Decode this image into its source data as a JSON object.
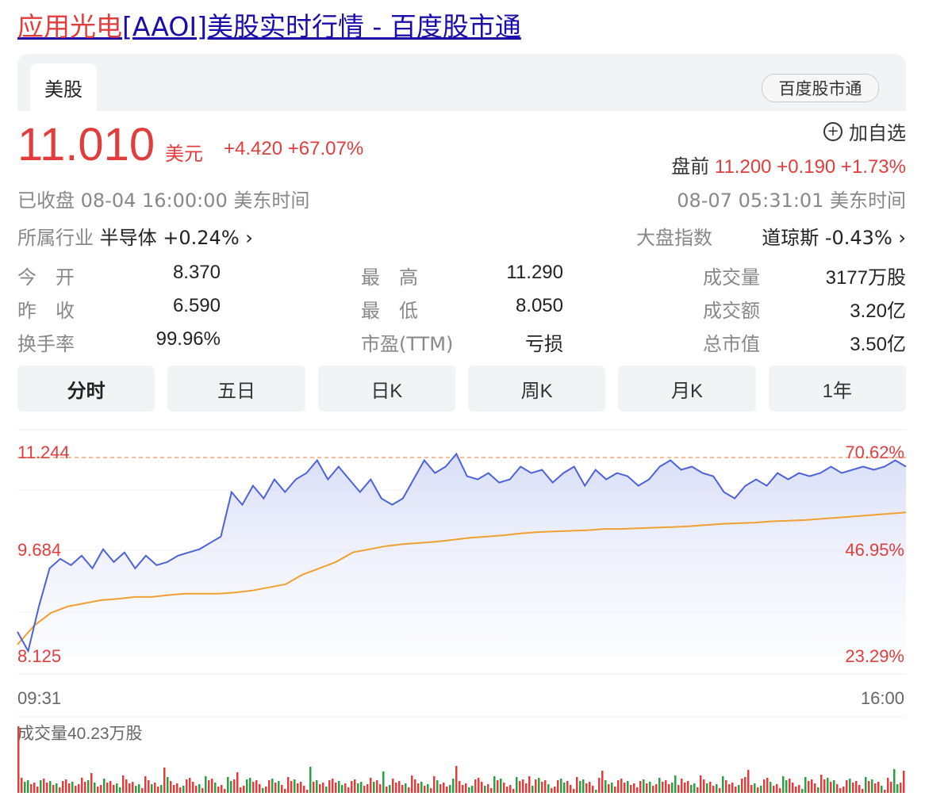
{
  "page_title": {
    "highlight": "应用光电",
    "rest": "[AAOI]美股实时行情 - 百度股市通"
  },
  "market_tab": "美股",
  "brand": "百度股市通",
  "quote": {
    "price": "11.010",
    "currency": "美元",
    "change": "+4.420 +67.07%",
    "watch_label": "加自选",
    "premarket_label": "盘前",
    "premarket_value": "11.200 +0.190 +1.73%",
    "status": "已收盘  08-04 16:00:00  美东时间",
    "premarket_time": "08-07 05:31:01  美东时间",
    "industry_label": "所属行业",
    "industry_value": "半导体 +0.24%",
    "index_label": "大盘指数",
    "index_value": "道琼斯 -0.43%"
  },
  "stats": [
    {
      "label": "今　开",
      "value": "8.370",
      "color": "red"
    },
    {
      "label": "最　高",
      "value": "11.290",
      "color": "red"
    },
    {
      "label": "成交量",
      "value": "3177万股",
      "color": "dark"
    },
    {
      "label": "昨　收",
      "value": "6.590",
      "color": "dark"
    },
    {
      "label": "最　低",
      "value": "8.050",
      "color": "red"
    },
    {
      "label": "成交额",
      "value": "3.20亿",
      "color": "dark"
    },
    {
      "label": "换手率",
      "value": "99.96%",
      "color": "dark"
    },
    {
      "label": "市盈(TTM)",
      "value": "亏损",
      "color": "dark"
    },
    {
      "label": "总市值",
      "value": "3.50亿",
      "color": "dark"
    }
  ],
  "period_tabs": [
    "分时",
    "五日",
    "日K",
    "周K",
    "月K",
    "1年"
  ],
  "selected_tab": "分时",
  "chart_axis": {
    "y_left": [
      "11.244",
      "9.684",
      "8.125"
    ],
    "y_right": [
      "70.62%",
      "46.95%",
      "23.29%"
    ],
    "x_start": "09:31",
    "x_end": "16:00",
    "volume_label": "成交量40.23万股"
  },
  "colors": {
    "up": "#e23d3d",
    "price_line": "#4b62d8",
    "avg_line": "#f0a030",
    "down": "#2ea043",
    "link": "#1a0dab"
  },
  "chart_data": {
    "type": "line",
    "ylim": [
      8.125,
      11.244
    ],
    "x_range": [
      "09:31",
      "16:00"
    ],
    "series": [
      {
        "values": [
          8.5,
          8.2,
          8.9,
          9.5,
          9.65,
          9.55,
          9.7,
          9.5,
          9.8,
          9.6,
          9.75,
          9.5,
          9.7,
          9.55,
          9.6,
          9.7,
          9.75,
          9.8,
          9.9,
          10.0,
          10.7,
          10.5,
          10.8,
          10.6,
          10.9,
          10.7,
          10.9,
          11.0,
          11.2,
          10.9,
          11.1,
          10.9,
          10.7,
          10.9,
          10.6,
          10.5,
          10.6,
          10.9,
          11.2,
          11.0,
          11.1,
          11.3,
          10.95,
          10.9,
          11.0,
          10.85,
          10.9,
          11.1,
          11.0,
          11.05,
          10.85,
          11.0,
          11.1,
          10.8,
          11.05,
          10.9,
          11.0,
          10.95,
          10.8,
          10.9,
          11.1,
          11.2,
          11.05,
          11.1,
          11.0,
          10.95,
          10.7,
          10.6,
          10.8,
          10.9,
          10.8,
          11.0,
          10.9,
          11.0,
          10.95,
          11.0,
          11.1,
          11.0,
          11.05,
          11.1,
          11.05,
          11.1,
          11.2,
          11.1
        ]
      },
      {
        "values": [
          8.3,
          8.6,
          8.8,
          8.9,
          8.95,
          9.0,
          9.02,
          9.05,
          9.05,
          9.08,
          9.1,
          9.1,
          9.1,
          9.12,
          9.15,
          9.2,
          9.25,
          9.4,
          9.5,
          9.6,
          9.75,
          9.8,
          9.85,
          9.88,
          9.9,
          9.92,
          9.95,
          9.98,
          10.0,
          10.02,
          10.05,
          10.07,
          10.08,
          10.09,
          10.1,
          10.12,
          10.12,
          10.13,
          10.14,
          10.15,
          10.16,
          10.18,
          10.2,
          10.21,
          10.22,
          10.24,
          10.25,
          10.26,
          10.28,
          10.3,
          10.32,
          10.34,
          10.36,
          10.38
        ]
      }
    ]
  }
}
